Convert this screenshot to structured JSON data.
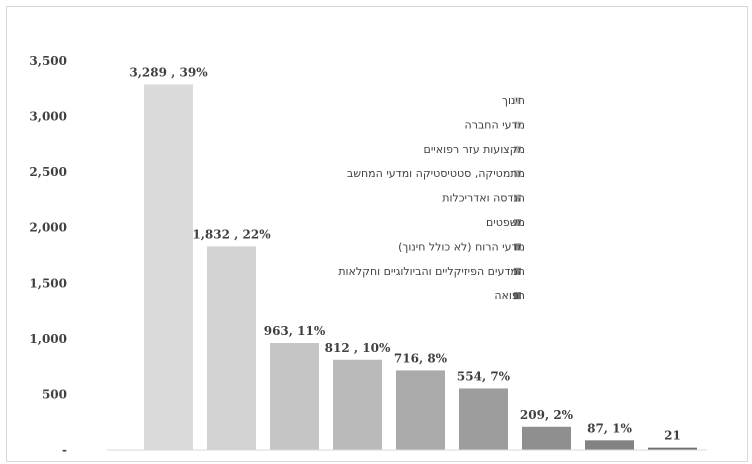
{
  "chart_data": {
    "type": "bar",
    "categories": [
      "חינוך",
      "מדעי החברה",
      "מקצועות עזר רפואיים",
      "מתמטיקה, סטטיסטיקה ומדעי המחשב",
      "הנדסה ואדריכלות",
      "משפטים",
      "מדעי הרוח (לא כולל חינוך)",
      "המדעים הפיזיקליים והביולוגיים וחקלאות",
      "רפואה"
    ],
    "values": [
      3289,
      1832,
      963,
      812,
      716,
      554,
      209,
      87,
      21
    ],
    "data_labels": [
      "3,289 , 39%",
      "1,832 , 22%",
      "963, 11%",
      "812 , 10%",
      "716, 8%",
      "554, 7%",
      "209, 2%",
      "87, 1%",
      "21"
    ],
    "colors": [
      "#dadada",
      "#d3d3d3",
      "#c5c5c5",
      "#bababa",
      "#aaaaaa",
      "#9d9d9d",
      "#8f8f8f",
      "#828282",
      "#6e6e6e"
    ],
    "y_ticks": [
      "-",
      "500",
      "1,000",
      "1,500",
      "2,000",
      "2,500",
      "3,000",
      "3,500"
    ],
    "ylim": [
      0,
      3500
    ],
    "grid": false,
    "legend_position": "right"
  }
}
